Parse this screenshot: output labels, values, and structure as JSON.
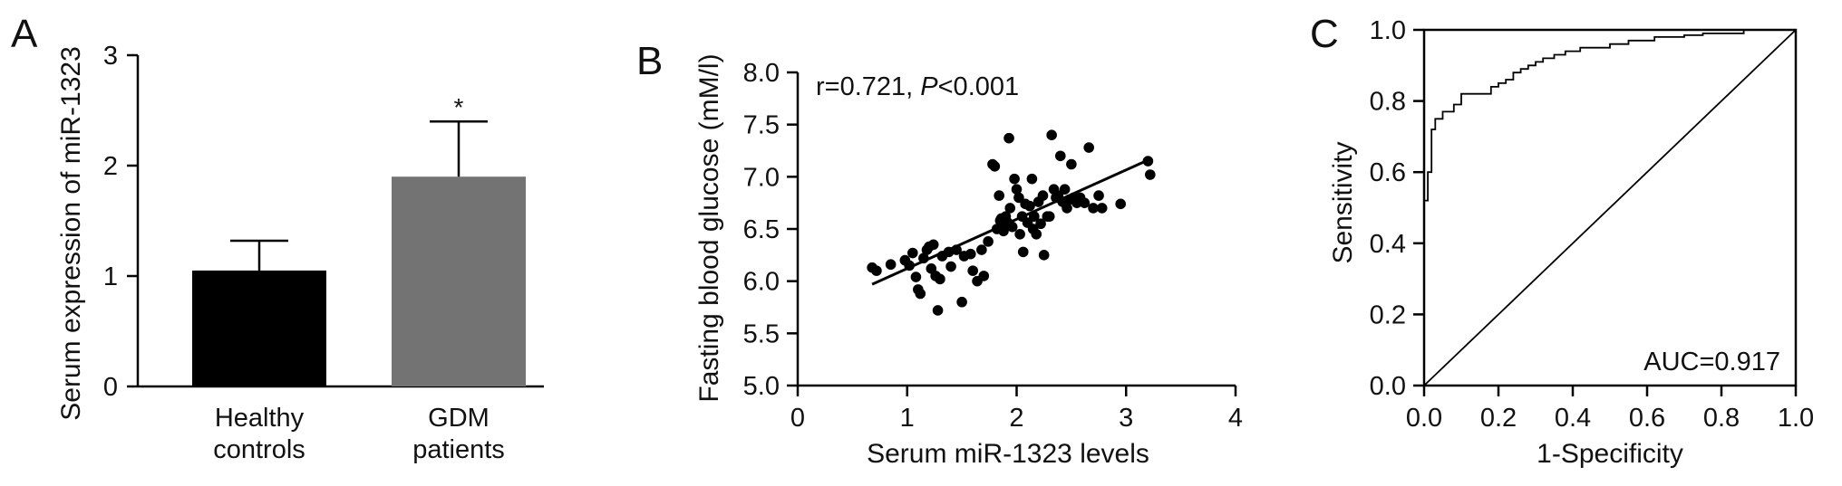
{
  "chart_data": [
    {
      "panel": "A",
      "type": "bar",
      "title": "",
      "xlabel": "",
      "ylabel": "Serum expression of miR-1323",
      "categories": [
        {
          "line1": "Healthy",
          "line2": "controls"
        },
        {
          "line1": "GDM",
          "line2": "patients"
        }
      ],
      "values": [
        1.05,
        1.9
      ],
      "errors": [
        0.27,
        0.5
      ],
      "bar_colors": [
        "#000000",
        "#737373"
      ],
      "significance": [
        "",
        "*"
      ],
      "yticks": [
        "0",
        "1",
        "2",
        "3"
      ],
      "ylim": [
        0,
        3
      ]
    },
    {
      "panel": "B",
      "type": "scatter",
      "title": "",
      "xlabel": "Serum miR-1323 levels",
      "ylabel": "Fasting blood glucose (mM/l)",
      "xlim": [
        0,
        4
      ],
      "ylim": [
        5.0,
        8.0
      ],
      "xticks": [
        "0",
        "1",
        "2",
        "3",
        "4"
      ],
      "yticks": [
        "5.0",
        "5.5",
        "6.0",
        "6.5",
        "7.0",
        "7.5",
        "8.0"
      ],
      "annotation": {
        "r_text": "r=0.721, ",
        "p_italic": "P",
        "p_rest": "<0.001"
      },
      "trendline": {
        "x": [
          0.68,
          3.2
        ],
        "y": [
          5.97,
          7.16
        ]
      },
      "points": [
        [
          0.68,
          6.13
        ],
        [
          0.72,
          6.1
        ],
        [
          0.85,
          6.16
        ],
        [
          0.98,
          6.2
        ],
        [
          1.02,
          6.15
        ],
        [
          1.05,
          6.27
        ],
        [
          1.08,
          6.04
        ],
        [
          1.1,
          5.92
        ],
        [
          1.12,
          5.88
        ],
        [
          1.15,
          6.22
        ],
        [
          1.18,
          6.3
        ],
        [
          1.2,
          6.33
        ],
        [
          1.22,
          6.12
        ],
        [
          1.24,
          6.35
        ],
        [
          1.26,
          6.05
        ],
        [
          1.28,
          5.72
        ],
        [
          1.3,
          6.02
        ],
        [
          1.32,
          6.24
        ],
        [
          1.38,
          6.28
        ],
        [
          1.4,
          6.14
        ],
        [
          1.45,
          6.3
        ],
        [
          1.5,
          5.8
        ],
        [
          1.52,
          6.24
        ],
        [
          1.58,
          6.26
        ],
        [
          1.6,
          6.1
        ],
        [
          1.64,
          6.0
        ],
        [
          1.68,
          6.3
        ],
        [
          1.7,
          6.05
        ],
        [
          1.74,
          6.38
        ],
        [
          1.78,
          7.12
        ],
        [
          1.8,
          7.1
        ],
        [
          1.82,
          6.5
        ],
        [
          1.84,
          6.82
        ],
        [
          1.85,
          6.58
        ],
        [
          1.86,
          6.6
        ],
        [
          1.88,
          6.48
        ],
        [
          1.9,
          6.62
        ],
        [
          1.92,
          6.56
        ],
        [
          1.93,
          7.37
        ],
        [
          1.94,
          6.7
        ],
        [
          1.96,
          6.52
        ],
        [
          1.98,
          6.98
        ],
        [
          2.0,
          6.88
        ],
        [
          2.02,
          6.8
        ],
        [
          2.03,
          6.45
        ],
        [
          2.05,
          6.62
        ],
        [
          2.06,
          6.28
        ],
        [
          2.08,
          6.74
        ],
        [
          2.1,
          6.56
        ],
        [
          2.12,
          6.72
        ],
        [
          2.14,
          6.98
        ],
        [
          2.15,
          6.5
        ],
        [
          2.16,
          6.62
        ],
        [
          2.18,
          6.45
        ],
        [
          2.2,
          6.76
        ],
        [
          2.22,
          6.55
        ],
        [
          2.24,
          6.82
        ],
        [
          2.25,
          6.25
        ],
        [
          2.28,
          6.62
        ],
        [
          2.3,
          6.62
        ],
        [
          2.32,
          7.4
        ],
        [
          2.34,
          6.88
        ],
        [
          2.36,
          6.8
        ],
        [
          2.38,
          6.82
        ],
        [
          2.4,
          7.2
        ],
        [
          2.42,
          6.76
        ],
        [
          2.44,
          6.88
        ],
        [
          2.46,
          6.7
        ],
        [
          2.48,
          6.78
        ],
        [
          2.5,
          7.12
        ],
        [
          2.52,
          6.8
        ],
        [
          2.55,
          6.75
        ],
        [
          2.58,
          6.8
        ],
        [
          2.62,
          6.75
        ],
        [
          2.66,
          7.28
        ],
        [
          2.7,
          6.7
        ],
        [
          2.75,
          6.82
        ],
        [
          2.78,
          6.7
        ],
        [
          2.95,
          6.74
        ],
        [
          3.2,
          7.15
        ],
        [
          3.22,
          7.02
        ]
      ]
    },
    {
      "panel": "C",
      "type": "line",
      "title": "",
      "xlabel": "1-Specificity",
      "ylabel": "Sensitivity",
      "xlim": [
        0,
        1
      ],
      "ylim": [
        0,
        1
      ],
      "xticks": [
        "0.0",
        "0.2",
        "0.4",
        "0.6",
        "0.8",
        "1.0"
      ],
      "yticks": [
        "0.0",
        "0.2",
        "0.4",
        "0.6",
        "0.8",
        "1.0"
      ],
      "annotation": "AUC=0.917",
      "roc_curve": {
        "x": [
          0,
          0,
          0.01,
          0.01,
          0.02,
          0.02,
          0.03,
          0.03,
          0.05,
          0.05,
          0.08,
          0.08,
          0.1,
          0.1,
          0.18,
          0.18,
          0.2,
          0.2,
          0.22,
          0.22,
          0.24,
          0.24,
          0.26,
          0.26,
          0.28,
          0.28,
          0.3,
          0.3,
          0.32,
          0.32,
          0.35,
          0.35,
          0.38,
          0.38,
          0.42,
          0.42,
          0.5,
          0.5,
          0.55,
          0.55,
          0.62,
          0.62,
          0.7,
          0.7,
          0.75,
          0.75,
          0.86,
          0.86,
          1.0
        ],
        "y": [
          0,
          0.52,
          0.52,
          0.6,
          0.6,
          0.72,
          0.72,
          0.75,
          0.75,
          0.77,
          0.77,
          0.79,
          0.79,
          0.82,
          0.82,
          0.84,
          0.84,
          0.85,
          0.85,
          0.86,
          0.86,
          0.88,
          0.88,
          0.89,
          0.89,
          0.9,
          0.9,
          0.91,
          0.91,
          0.92,
          0.92,
          0.93,
          0.93,
          0.94,
          0.94,
          0.95,
          0.95,
          0.96,
          0.96,
          0.97,
          0.97,
          0.98,
          0.98,
          0.985,
          0.985,
          0.99,
          0.99,
          1.0,
          1.0
        ]
      },
      "reference_line": {
        "x": [
          0,
          1
        ],
        "y": [
          0,
          1
        ]
      }
    }
  ]
}
